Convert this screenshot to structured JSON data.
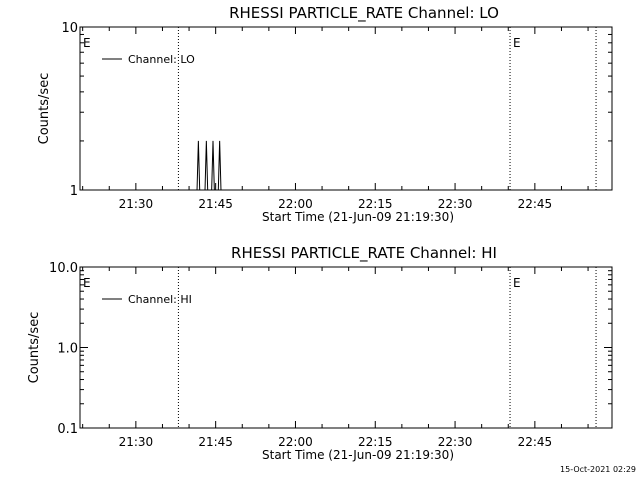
{
  "footer": {
    "timestamp": "15-Oct-2021 02:29"
  },
  "chart_data": [
    {
      "type": "line",
      "title": "RHESSI PARTICLE_RATE Channel: LO",
      "xlabel": "Start Time (21-Jun-09 21:19:30)",
      "ylabel": "Counts/sec",
      "yscale": "log",
      "xlim": [
        "21:19:30",
        "22:59:30"
      ],
      "ylim": [
        1,
        10
      ],
      "x_ticks": [
        "21:30",
        "21:45",
        "22:00",
        "22:15",
        "22:30",
        "22:45"
      ],
      "y_ticks": [
        "1",
        "10"
      ],
      "legend": {
        "position": "top-left",
        "entries": [
          "Channel: LO"
        ]
      },
      "markers": {
        "dotted_lines": [
          "21:38:00",
          "22:40:20",
          "22:56:30"
        ],
        "labels": [
          {
            "x": "21:19:30",
            "text": "E"
          },
          {
            "x": "22:40:20",
            "text": "E"
          }
        ]
      },
      "series": [
        {
          "name": "Channel: LO",
          "points": [
            [
              "21:41:30",
              1
            ],
            [
              "21:41:45",
              2
            ],
            [
              "21:42:00",
              1
            ],
            [
              "21:43:00",
              1
            ],
            [
              "21:43:15",
              2
            ],
            [
              "21:43:30",
              1
            ],
            [
              "21:44:15",
              1
            ],
            [
              "21:44:30",
              2
            ],
            [
              "21:44:45",
              1
            ],
            [
              "21:45:30",
              1
            ],
            [
              "21:45:45",
              2
            ],
            [
              "21:46:00",
              1
            ]
          ]
        }
      ]
    },
    {
      "type": "line",
      "title": "RHESSI PARTICLE_RATE Channel: HI",
      "xlabel": "Start Time (21-Jun-09 21:19:30)",
      "ylabel": "Counts/sec",
      "yscale": "log",
      "xlim": [
        "21:19:30",
        "22:59:30"
      ],
      "ylim": [
        0.1,
        10
      ],
      "x_ticks": [
        "21:30",
        "21:45",
        "22:00",
        "22:15",
        "22:30",
        "22:45"
      ],
      "y_ticks": [
        "0.1",
        "1.0",
        "10.0"
      ],
      "legend": {
        "position": "top-left",
        "entries": [
          "Channel: HI"
        ]
      },
      "markers": {
        "dotted_lines": [
          "21:38:00",
          "22:40:20",
          "22:56:30"
        ],
        "labels": [
          {
            "x": "21:19:30",
            "text": "E"
          },
          {
            "x": "22:40:20",
            "text": "E"
          }
        ]
      },
      "series": [
        {
          "name": "Channel: HI",
          "points": []
        }
      ]
    }
  ]
}
